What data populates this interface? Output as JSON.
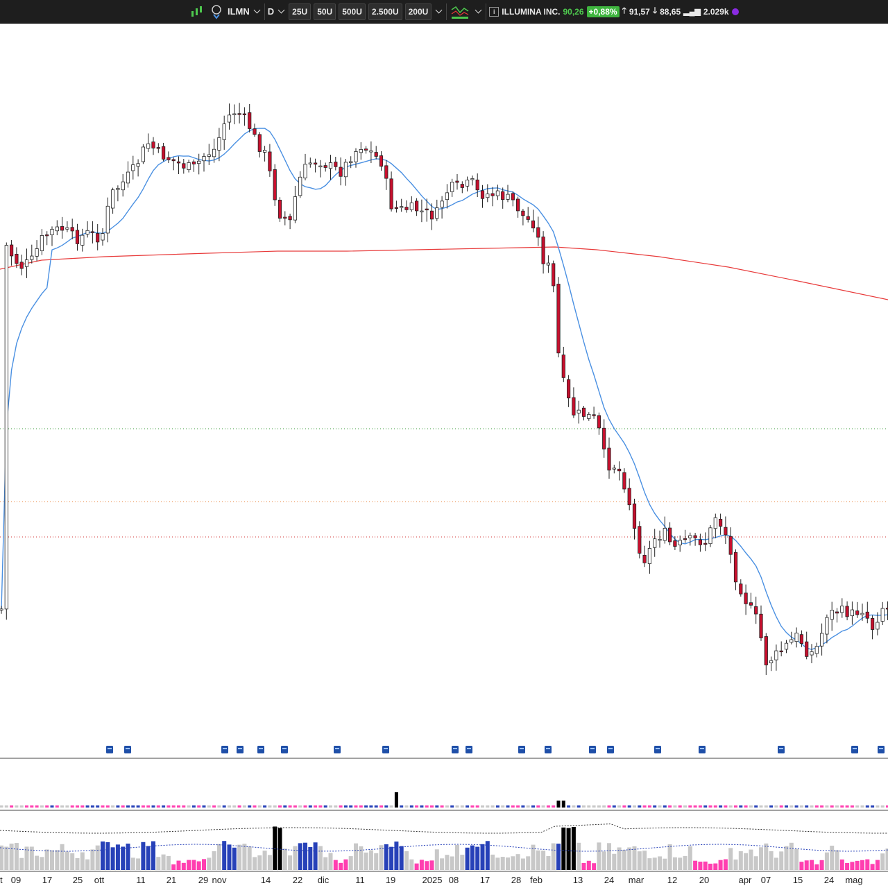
{
  "toolbar": {
    "symbol": "ILMN",
    "interval": "D",
    "buttons": [
      "25U",
      "50U",
      "500U",
      "2.500U",
      "200U"
    ],
    "name": "ILLUMINA INC.",
    "price": "90,26",
    "change": "+0,88%",
    "high": "91,57",
    "low": "88,65",
    "volume": "2.029k",
    "icons": [
      "indicators-icon",
      "symbol-search-icon",
      "chart-style-icon",
      "info-icon",
      "status-dot-icon"
    ]
  },
  "colors": {
    "up_candle": "#ffffff",
    "down_candle": "#c8102e",
    "ma_short": "#4a90e2",
    "ma_long": "#e83a3a",
    "vol_up": "#2741b8",
    "vol_down": "#ff3fb0",
    "vol_neutral": "#c8c8c8",
    "vol_spike": "#000000"
  },
  "x_axis_labels": [
    "t",
    "09",
    "17",
    "25",
    "ott",
    "11",
    "21",
    "29",
    "nov",
    "14",
    "22",
    "dic",
    "11",
    "19",
    "2025",
    "08",
    "17",
    "28",
    "feb",
    "13",
    "24",
    "mar",
    "12",
    "20",
    "apr",
    "07",
    "15",
    "24",
    "mag"
  ],
  "chart_data": {
    "type": "candlestick",
    "series": [
      {
        "name": "",
        "type": "candlestick",
        "count": 175
      },
      {
        "name": "",
        "type": "line"
      },
      {
        "name": "",
        "type": "line"
      }
    ]
  }
}
